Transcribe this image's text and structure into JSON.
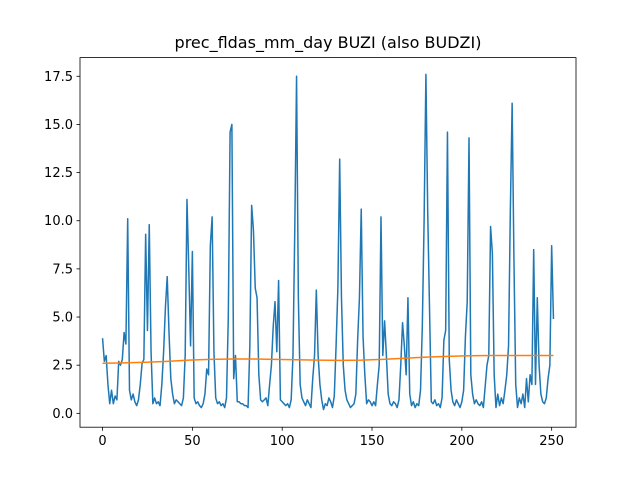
{
  "chart_data": {
    "type": "line",
    "title": "prec_fldas_mm_day BUZI (also BUDZI)",
    "xlim": [
      -12.55,
      263.55
    ],
    "xticks": [
      0,
      50,
      100,
      150,
      200,
      250
    ],
    "ylim": [
      -0.72,
      18.47
    ],
    "yticks": [
      {
        "value": 0,
        "label": "0.0"
      },
      2.5,
      {
        "value": 5,
        "label": "5.0"
      },
      7.5,
      {
        "value": 10,
        "label": "10.0"
      },
      12.5,
      {
        "value": 15,
        "label": "15.0"
      },
      17.5
    ],
    "grid": false,
    "series": [
      {
        "color": "#1f77b4",
        "x": [
          0,
          1,
          2,
          3,
          4,
          5,
          6,
          7,
          8,
          9,
          10,
          11,
          12,
          13,
          14,
          15,
          16,
          17,
          18,
          19,
          20,
          21,
          22,
          23,
          24,
          25,
          26,
          27,
          28,
          29,
          30,
          31,
          32,
          33,
          34,
          35,
          36,
          37,
          38,
          39,
          40,
          41,
          42,
          43,
          44,
          45,
          46,
          47,
          48,
          49,
          50,
          51,
          52,
          53,
          54,
          55,
          56,
          57,
          58,
          59,
          60,
          61,
          62,
          63,
          64,
          65,
          66,
          67,
          68,
          69,
          70,
          71,
          72,
          73,
          74,
          75,
          76,
          77,
          78,
          79,
          80,
          81,
          82,
          83,
          84,
          85,
          86,
          87,
          88,
          89,
          90,
          91,
          92,
          93,
          94,
          95,
          96,
          97,
          98,
          99,
          100,
          101,
          102,
          103,
          104,
          105,
          106,
          107,
          108,
          109,
          110,
          111,
          112,
          113,
          114,
          115,
          116,
          117,
          118,
          119,
          120,
          121,
          122,
          123,
          124,
          125,
          126,
          127,
          128,
          129,
          130,
          131,
          132,
          133,
          134,
          135,
          136,
          137,
          138,
          139,
          140,
          141,
          142,
          143,
          144,
          145,
          146,
          147,
          148,
          149,
          150,
          151,
          152,
          153,
          154,
          155,
          156,
          157,
          158,
          159,
          160,
          161,
          162,
          163,
          164,
          165,
          166,
          167,
          168,
          169,
          170,
          171,
          172,
          173,
          174,
          175,
          176,
          177,
          178,
          179,
          180,
          181,
          182,
          183,
          184,
          185,
          186,
          187,
          188,
          189,
          190,
          191,
          192,
          193,
          194,
          195,
          196,
          197,
          198,
          199,
          200,
          201,
          202,
          203,
          204,
          205,
          206,
          207,
          208,
          209,
          210,
          211,
          212,
          213,
          214,
          215,
          216,
          217,
          218,
          219,
          220,
          221,
          222,
          223,
          224,
          225,
          226,
          227,
          228,
          229,
          230,
          231,
          232,
          233,
          234,
          235,
          236,
          237,
          238,
          239,
          240,
          241,
          242,
          243,
          244,
          245,
          246,
          247,
          248,
          249,
          250,
          251
        ],
        "values": [
          3.9,
          2.7,
          3.0,
          1.5,
          0.5,
          1.2,
          0.5,
          0.9,
          0.7,
          2.7,
          2.5,
          2.8,
          4.2,
          3.6,
          10.1,
          1.2,
          0.7,
          1.0,
          0.6,
          0.4,
          0.7,
          1.5,
          2.6,
          2.8,
          9.3,
          4.3,
          9.8,
          3.2,
          0.5,
          0.8,
          0.5,
          0.6,
          0.4,
          1.5,
          3.2,
          5.5,
          7.1,
          4.2,
          1.8,
          1.0,
          0.5,
          0.7,
          0.6,
          0.5,
          0.4,
          0.8,
          3.0,
          11.1,
          7.5,
          3.5,
          8.4,
          0.8,
          0.5,
          0.6,
          0.4,
          0.3,
          0.5,
          1.0,
          2.3,
          2.0,
          8.7,
          10.2,
          3.2,
          0.8,
          0.5,
          0.6,
          0.4,
          0.5,
          0.3,
          0.8,
          5.0,
          14.6,
          15.0,
          1.8,
          3.0,
          0.6,
          0.6,
          0.5,
          0.5,
          0.4,
          0.4,
          0.3,
          3.5,
          10.8,
          9.5,
          6.5,
          6.0,
          2.0,
          0.7,
          0.6,
          0.7,
          0.8,
          0.4,
          1.5,
          2.5,
          4.5,
          5.8,
          3.2,
          6.9,
          0.7,
          0.6,
          0.5,
          0.4,
          0.5,
          0.3,
          0.7,
          3.0,
          9.5,
          17.5,
          6.0,
          1.5,
          0.8,
          0.6,
          0.4,
          0.7,
          0.5,
          0.3,
          1.8,
          3.0,
          6.4,
          3.0,
          1.5,
          0.7,
          0.2,
          0.5,
          0.4,
          0.8,
          0.6,
          0.3,
          0.9,
          3.5,
          6.5,
          13.2,
          6.0,
          2.5,
          1.2,
          0.7,
          0.5,
          0.3,
          0.4,
          0.5,
          1.0,
          3.8,
          6.0,
          10.6,
          4.0,
          2.0,
          0.5,
          0.7,
          0.6,
          0.4,
          0.6,
          0.4,
          1.5,
          2.5,
          10.2,
          3.0,
          4.8,
          3.0,
          1.0,
          0.5,
          0.4,
          0.6,
          0.5,
          0.3,
          0.7,
          2.5,
          4.7,
          3.5,
          2.0,
          6.0,
          1.0,
          0.4,
          0.6,
          0.3,
          0.5,
          0.4,
          1.2,
          4.5,
          10.0,
          17.6,
          10.5,
          5.5,
          0.6,
          0.5,
          0.7,
          0.4,
          0.5,
          0.3,
          0.8,
          3.8,
          4.3,
          14.6,
          2.8,
          1.2,
          0.6,
          0.4,
          0.7,
          0.5,
          0.3,
          0.6,
          1.2,
          4.0,
          5.8,
          14.3,
          2.0,
          1.0,
          0.5,
          0.7,
          0.5,
          0.4,
          0.6,
          0.3,
          1.4,
          2.5,
          3.0,
          9.7,
          8.3,
          2.0,
          0.3,
          1.0,
          0.4,
          0.8,
          0.5,
          1.2,
          2.0,
          3.5,
          10.5,
          16.1,
          8.0,
          1.5,
          0.3,
          0.8,
          0.5,
          1.0,
          0.3,
          1.8,
          0.6,
          2.0,
          1.5,
          8.5,
          1.5,
          6.0,
          2.5,
          1.0,
          0.6,
          0.5,
          0.8,
          1.8,
          2.5,
          8.7,
          4.9
        ]
      },
      {
        "color": "#ff7f0e",
        "x": [
          0,
          12,
          24,
          36,
          48,
          60,
          72,
          84,
          96,
          108,
          120,
          132,
          144,
          156,
          168,
          180,
          192,
          204,
          216,
          228,
          240,
          251
        ],
        "values": [
          2.6,
          2.62,
          2.65,
          2.7,
          2.76,
          2.8,
          2.82,
          2.82,
          2.8,
          2.78,
          2.76,
          2.75,
          2.76,
          2.8,
          2.86,
          2.92,
          2.96,
          2.99,
          3.0,
          3.0,
          3.0,
          3.0
        ]
      }
    ]
  }
}
